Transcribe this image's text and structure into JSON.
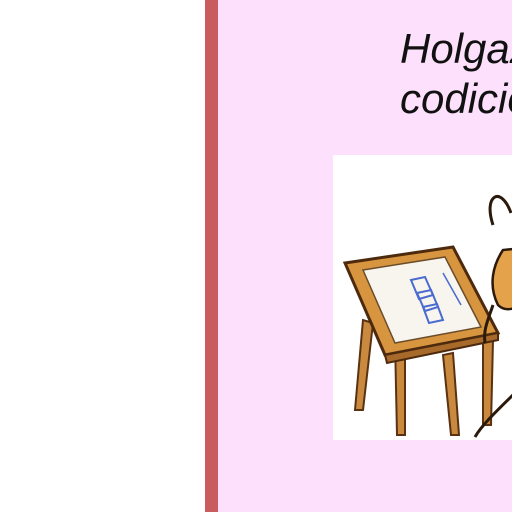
{
  "slide": {
    "text_lines": [
      "Holgaz",
      "codicio"
    ],
    "illustration": {
      "icon": "drafting-table-cartoon-icon"
    }
  },
  "colors": {
    "accent_bar": "#c95c5e",
    "panel_background": "#fde0fb",
    "page_background": "#ffffff",
    "text": "#111111"
  }
}
